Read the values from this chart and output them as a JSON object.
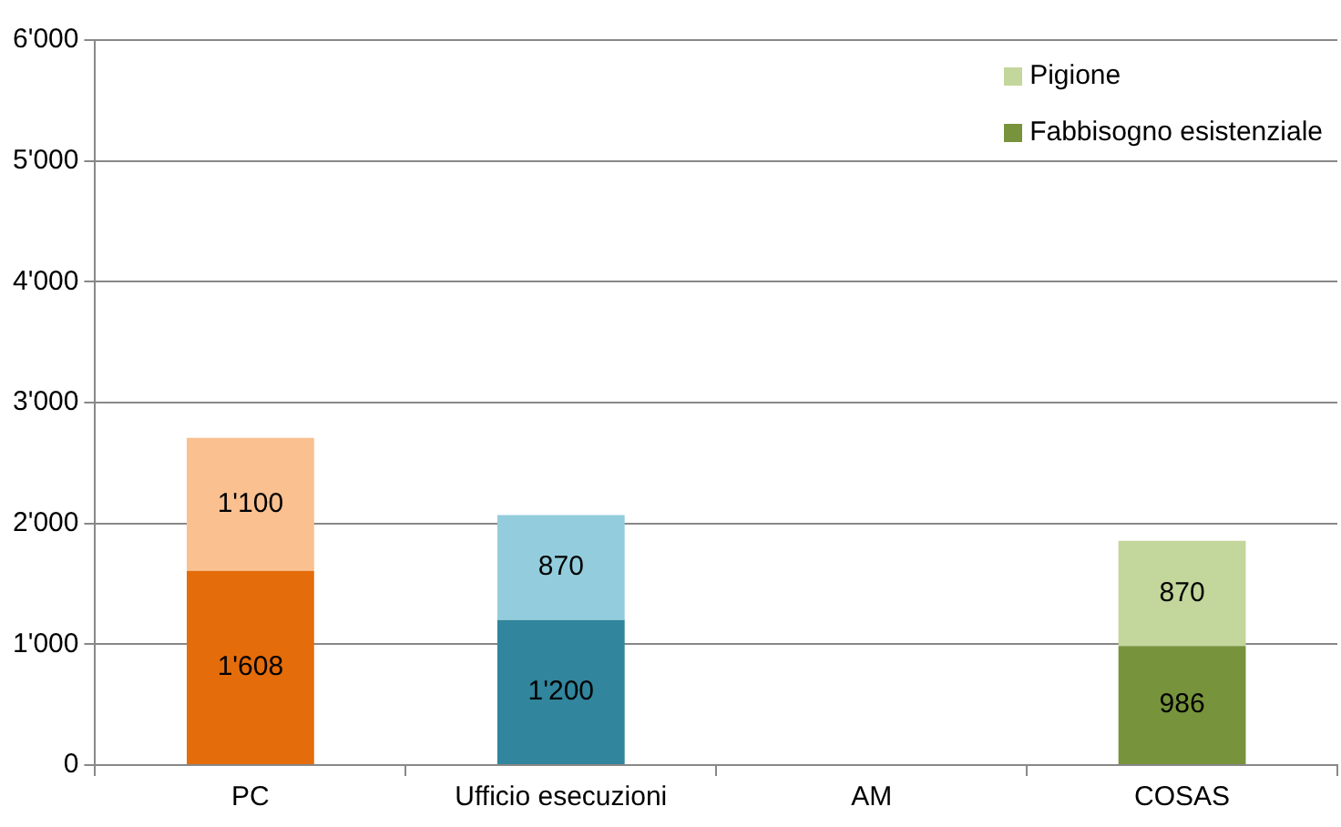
{
  "chart_data": {
    "type": "bar",
    "stacked": true,
    "categories": [
      "PC",
      "Ufficio esecuzioni",
      "AM",
      "COSAS"
    ],
    "series": [
      {
        "name": "Fabbisogno esistenziale",
        "color": "#77933c",
        "colors": [
          "#e46c0a",
          "#31859c",
          "#77933c",
          "#77933c"
        ],
        "values": [
          1608,
          1200,
          null,
          986
        ],
        "value_labels": [
          "1'608",
          "1'200",
          null,
          "986"
        ]
      },
      {
        "name": "Pigione",
        "color": "#c3d69b",
        "colors": [
          "#fac090",
          "#93cddd",
          "#c3d69b",
          "#c3d69b"
        ],
        "values": [
          1100,
          870,
          null,
          870
        ],
        "value_labels": [
          "1'100",
          "870",
          null,
          "870"
        ]
      }
    ],
    "ylim": [
      0,
      6000
    ],
    "yticks": [
      {
        "value": 0,
        "label": "0"
      },
      {
        "value": 1000,
        "label": "1'000"
      },
      {
        "value": 2000,
        "label": "2'000"
      },
      {
        "value": 3000,
        "label": "3'000"
      },
      {
        "value": 4000,
        "label": "4'000"
      },
      {
        "value": 5000,
        "label": "5'000"
      },
      {
        "value": 6000,
        "label": "6'000"
      }
    ],
    "grid": "y",
    "legend": "top right"
  }
}
